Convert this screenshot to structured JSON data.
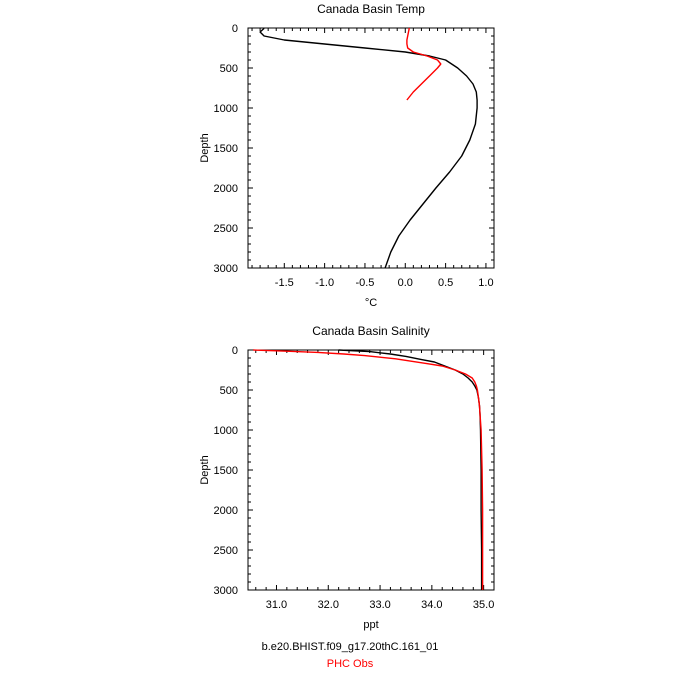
{
  "chart_data": [
    {
      "type": "line",
      "title": "Canada Basin Temp",
      "xlabel": "°C",
      "ylabel": "Depth",
      "xlim": [
        -1.95,
        1.1
      ],
      "ylim": [
        3000,
        0
      ],
      "x_ticks": [
        -1.5,
        -1.0,
        -0.5,
        0.0,
        0.5,
        1.0
      ],
      "x_tick_labels": [
        "-1.5",
        "-1.0",
        "-0.5",
        "0.0",
        "0.5",
        "1.0"
      ],
      "y_ticks": [
        0,
        500,
        1000,
        1500,
        2000,
        2500,
        3000
      ],
      "y_tick_labels": [
        "0",
        "500",
        "1000",
        "1500",
        "2000",
        "2500",
        "3000"
      ],
      "series": [
        {
          "color": "#000000",
          "points": [
            [
              -1.75,
              5
            ],
            [
              -1.8,
              50
            ],
            [
              -1.75,
              100
            ],
            [
              -1.5,
              150
            ],
            [
              -1.0,
              200
            ],
            [
              -0.5,
              250
            ],
            [
              0.0,
              300
            ],
            [
              0.3,
              350
            ],
            [
              0.5,
              400
            ],
            [
              0.65,
              500
            ],
            [
              0.76,
              600
            ],
            [
              0.84,
              700
            ],
            [
              0.88,
              800
            ],
            [
              0.89,
              900
            ],
            [
              0.89,
              1000
            ],
            [
              0.87,
              1200
            ],
            [
              0.8,
              1400
            ],
            [
              0.7,
              1600
            ],
            [
              0.55,
              1800
            ],
            [
              0.38,
              2000
            ],
            [
              0.22,
              2200
            ],
            [
              0.06,
              2400
            ],
            [
              -0.08,
              2600
            ],
            [
              -0.18,
              2800
            ],
            [
              -0.25,
              3000
            ]
          ]
        },
        {
          "color": "#ff0000",
          "points": [
            [
              0.05,
              0
            ],
            [
              0.04,
              50
            ],
            [
              0.03,
              100
            ],
            [
              0.02,
              150
            ],
            [
              0.02,
              200
            ],
            [
              0.03,
              250
            ],
            [
              0.1,
              300
            ],
            [
              0.27,
              350
            ],
            [
              0.4,
              400
            ],
            [
              0.44,
              450
            ],
            [
              0.4,
              500
            ],
            [
              0.3,
              600
            ],
            [
              0.2,
              700
            ],
            [
              0.1,
              800
            ],
            [
              0.02,
              900
            ]
          ]
        }
      ]
    },
    {
      "type": "line",
      "title": "Canada Basin Salinity",
      "xlabel": "ppt",
      "ylabel": "Depth",
      "xlim": [
        30.45,
        35.2
      ],
      "ylim": [
        3000,
        0
      ],
      "x_ticks": [
        31.0,
        32.0,
        33.0,
        34.0,
        35.0
      ],
      "x_tick_labels": [
        "31.0",
        "32.0",
        "33.0",
        "34.0",
        "35.0"
      ],
      "y_ticks": [
        0,
        500,
        1000,
        1500,
        2000,
        2500,
        3000
      ],
      "y_tick_labels": [
        "0",
        "500",
        "1000",
        "1500",
        "2000",
        "2500",
        "3000"
      ],
      "series": [
        {
          "color": "#000000",
          "points": [
            [
              32.2,
              0
            ],
            [
              32.8,
              20
            ],
            [
              33.2,
              50
            ],
            [
              33.5,
              80
            ],
            [
              33.8,
              120
            ],
            [
              34.05,
              150
            ],
            [
              34.25,
              200
            ],
            [
              34.45,
              250
            ],
            [
              34.6,
              300
            ],
            [
              34.7,
              350
            ],
            [
              34.78,
              400
            ],
            [
              34.83,
              450
            ],
            [
              34.87,
              500
            ],
            [
              34.9,
              600
            ],
            [
              34.92,
              700
            ],
            [
              34.93,
              800
            ],
            [
              34.94,
              1000
            ],
            [
              34.95,
              1500
            ],
            [
              34.95,
              2000
            ],
            [
              34.96,
              2500
            ],
            [
              34.96,
              3000
            ]
          ]
        },
        {
          "color": "#ff0000",
          "points": [
            [
              30.55,
              0
            ],
            [
              31.2,
              15
            ],
            [
              31.8,
              30
            ],
            [
              32.3,
              50
            ],
            [
              32.7,
              70
            ],
            [
              33.0,
              90
            ],
            [
              33.3,
              110
            ],
            [
              33.6,
              140
            ],
            [
              33.9,
              170
            ],
            [
              34.2,
              200
            ],
            [
              34.45,
              250
            ],
            [
              34.65,
              300
            ],
            [
              34.78,
              350
            ],
            [
              34.83,
              400
            ],
            [
              34.86,
              450
            ],
            [
              34.88,
              500
            ],
            [
              34.9,
              600
            ],
            [
              34.92,
              700
            ],
            [
              34.93,
              800
            ],
            [
              34.95,
              1000
            ],
            [
              34.97,
              1500
            ],
            [
              34.98,
              2000
            ],
            [
              34.98,
              2500
            ],
            [
              34.98,
              3000
            ]
          ]
        }
      ]
    }
  ],
  "legend": {
    "model_label": "b.e20.BHIST.f09_g17.20thC.161_01",
    "model_color": "#000000",
    "obs_label": "PHC Obs",
    "obs_color": "#ff0000"
  }
}
